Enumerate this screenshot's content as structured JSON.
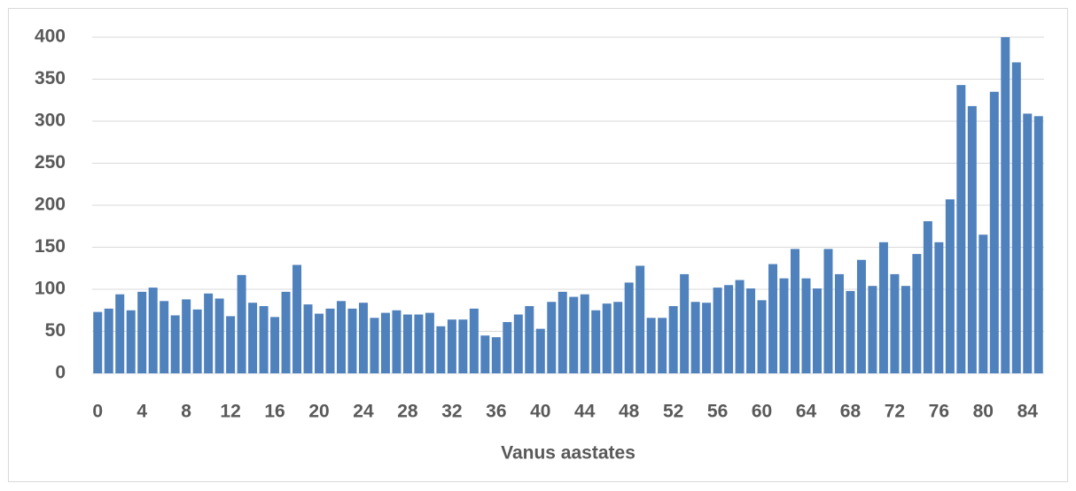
{
  "chart_data": {
    "type": "bar",
    "x_label": "Vanus aastates",
    "categories": [
      0,
      null,
      null,
      null,
      4,
      null,
      null,
      null,
      8,
      null,
      null,
      null,
      12,
      null,
      null,
      null,
      16,
      null,
      null,
      null,
      20,
      null,
      null,
      null,
      24,
      null,
      null,
      null,
      28,
      null,
      null,
      null,
      32,
      null,
      null,
      null,
      36,
      null,
      null,
      null,
      40,
      null,
      null,
      null,
      44,
      null,
      null,
      null,
      48,
      null,
      null,
      null,
      52,
      null,
      null,
      null,
      56,
      null,
      null,
      null,
      60,
      null,
      null,
      null,
      64,
      null,
      null,
      null,
      68,
      null,
      null,
      null,
      72,
      null,
      null,
      null,
      76,
      null,
      null,
      null,
      80,
      null,
      null,
      null,
      84,
      null
    ],
    "values": [
      73,
      77,
      94,
      75,
      97,
      102,
      86,
      69,
      88,
      76,
      95,
      89,
      68,
      117,
      84,
      80,
      67,
      97,
      129,
      82,
      71,
      77,
      86,
      77,
      84,
      66,
      72,
      75,
      70,
      70,
      72,
      56,
      64,
      64,
      77,
      45,
      43,
      61,
      70,
      80,
      53,
      85,
      97,
      91,
      94,
      75,
      83,
      85,
      108,
      128,
      66,
      66,
      80,
      118,
      85,
      84,
      102,
      105,
      111,
      101,
      87,
      130,
      113,
      148,
      113,
      101,
      148,
      118,
      98,
      135,
      104,
      156,
      118,
      104,
      142,
      181,
      156,
      207,
      343,
      318,
      165,
      335,
      400,
      370,
      309,
      306
    ],
    "color": "#4f81bd",
    "ylim": [
      0,
      400
    ],
    "yticks": [
      0,
      50,
      100,
      150,
      200,
      250,
      300,
      350,
      400
    ],
    "grid": true
  }
}
